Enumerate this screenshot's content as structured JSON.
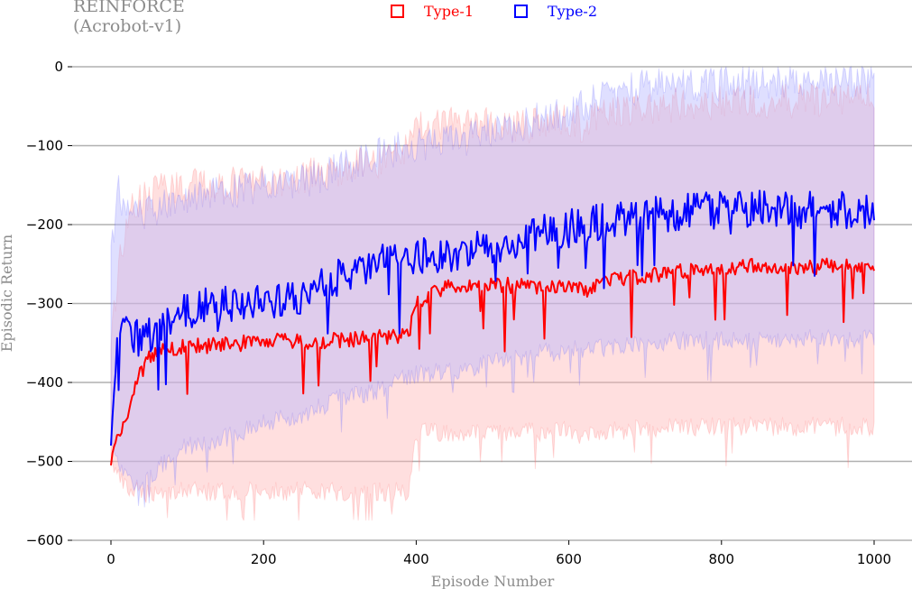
{
  "chart_data": {
    "type": "line",
    "title": "REINFORCE",
    "subtitle": "(Acrobot-v1)",
    "xlabel": "Episode Number",
    "ylabel": "Episodic Return",
    "xlim": [
      0,
      1000
    ],
    "ylim": [
      -600,
      0
    ],
    "xticks": [
      0,
      200,
      400,
      600,
      800,
      1000
    ],
    "yticks": [
      0,
      -100,
      -200,
      -300,
      -400,
      -500,
      -600
    ],
    "grid": "horizontal",
    "legend_position": "top-center",
    "series": [
      {
        "name": "Type-1",
        "color": "#ff0000",
        "band_color": "#ffb3b3",
        "x": [
          0,
          10,
          20,
          30,
          40,
          50,
          60,
          80,
          100,
          150,
          200,
          250,
          300,
          350,
          390,
          400,
          420,
          450,
          500,
          550,
          600,
          620,
          650,
          700,
          750,
          800,
          850,
          900,
          950,
          1000
        ],
        "mean": [
          -495,
          -470,
          -445,
          -410,
          -385,
          -370,
          -362,
          -356,
          -354,
          -352,
          -348,
          -348,
          -346,
          -343,
          -340,
          -300,
          -285,
          -278,
          -276,
          -279,
          -278,
          -285,
          -272,
          -265,
          -258,
          -254,
          -253,
          -255,
          -252,
          -252
        ],
        "upper": [
          -350,
          -250,
          -200,
          -175,
          -165,
          -160,
          -158,
          -155,
          -150,
          -148,
          -145,
          -140,
          -130,
          -118,
          -105,
          -80,
          -75,
          -72,
          -70,
          -75,
          -65,
          -75,
          -58,
          -50,
          -48,
          -45,
          -42,
          -45,
          -42,
          -42
        ],
        "lower": [
          -500,
          -520,
          -535,
          -540,
          -540,
          -540,
          -538,
          -538,
          -538,
          -538,
          -538,
          -538,
          -538,
          -538,
          -538,
          -465,
          -463,
          -463,
          -463,
          -463,
          -462,
          -470,
          -462,
          -458,
          -457,
          -456,
          -456,
          -456,
          -456,
          -456
        ]
      },
      {
        "name": "Type-2",
        "color": "#0000ff",
        "band_color": "#b3b3ff",
        "x": [
          0,
          10,
          20,
          30,
          40,
          50,
          60,
          80,
          100,
          150,
          200,
          250,
          300,
          350,
          400,
          450,
          500,
          550,
          600,
          650,
          700,
          750,
          800,
          850,
          900,
          950,
          1000
        ],
        "mean": [
          -460,
          -330,
          -330,
          -340,
          -345,
          -340,
          -332,
          -318,
          -308,
          -300,
          -298,
          -290,
          -265,
          -250,
          -238,
          -240,
          -225,
          -215,
          -205,
          -195,
          -188,
          -185,
          -182,
          -180,
          -181,
          -182,
          -182
        ],
        "upper": [
          -230,
          -160,
          -180,
          -190,
          -190,
          -185,
          -180,
          -175,
          -165,
          -160,
          -150,
          -145,
          -130,
          -110,
          -100,
          -95,
          -80,
          -70,
          -55,
          -35,
          -25,
          -22,
          -20,
          -18,
          -18,
          -18,
          -18
        ],
        "lower": [
          -470,
          -500,
          -515,
          -530,
          -525,
          -520,
          -510,
          -495,
          -480,
          -470,
          -450,
          -440,
          -420,
          -410,
          -390,
          -385,
          -375,
          -365,
          -360,
          -355,
          -350,
          -348,
          -347,
          -346,
          -345,
          -345,
          -345
        ]
      }
    ]
  }
}
